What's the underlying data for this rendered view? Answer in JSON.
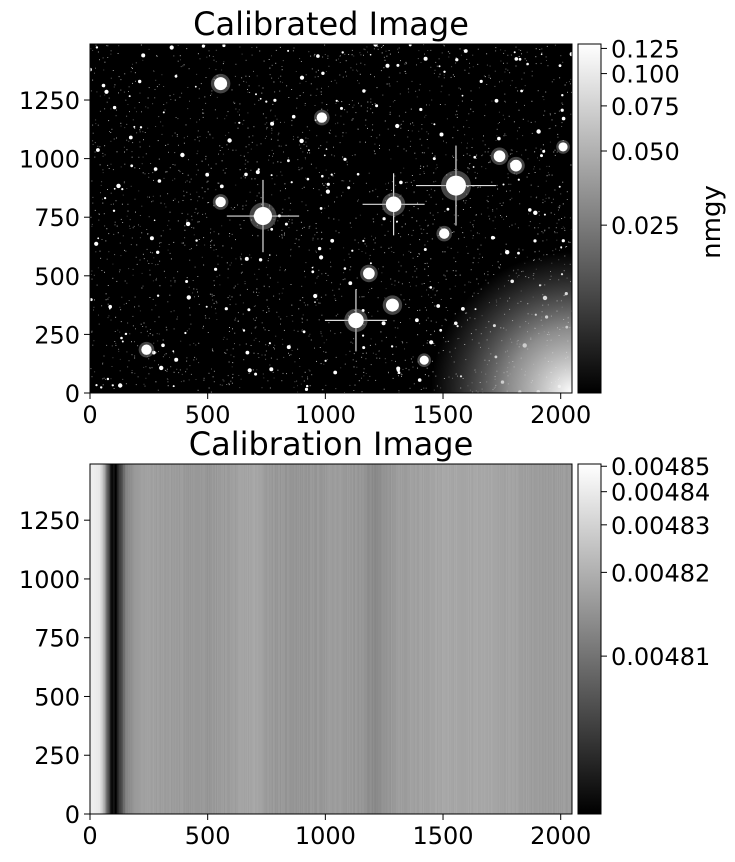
{
  "chart_data": [
    {
      "type": "heatmap",
      "title": "Calibrated Image",
      "xlabel": "",
      "ylabel": "",
      "xlim": [
        0,
        2048
      ],
      "ylim": [
        0,
        1489
      ],
      "x_ticks": [
        0,
        500,
        1000,
        1500,
        2000
      ],
      "y_ticks": [
        0,
        250,
        500,
        750,
        1000,
        1250
      ],
      "x_tick_labels": [
        "0",
        "500",
        "1000",
        "1500",
        "2000"
      ],
      "y_tick_labels": [
        "0",
        "250",
        "500",
        "750",
        "1000",
        "1250"
      ],
      "colormap": "gray",
      "background_level": 0.003,
      "stars": [
        {
          "x": 1555,
          "y": 885,
          "brightness": 0.125,
          "spikes": true
        },
        {
          "x": 735,
          "y": 755,
          "brightness": 0.11,
          "spikes": true
        },
        {
          "x": 1290,
          "y": 805,
          "brightness": 0.09,
          "spikes": true
        },
        {
          "x": 1130,
          "y": 310,
          "brightness": 0.09,
          "spikes": true
        },
        {
          "x": 555,
          "y": 1320,
          "brightness": 0.07,
          "spikes": false
        },
        {
          "x": 1285,
          "y": 375,
          "brightness": 0.07,
          "spikes": false
        },
        {
          "x": 1185,
          "y": 510,
          "brightness": 0.06,
          "spikes": false
        },
        {
          "x": 1740,
          "y": 1010,
          "brightness": 0.06,
          "spikes": false
        },
        {
          "x": 1810,
          "y": 970,
          "brightness": 0.06,
          "spikes": false
        },
        {
          "x": 240,
          "y": 185,
          "brightness": 0.05,
          "spikes": false
        },
        {
          "x": 985,
          "y": 1175,
          "brightness": 0.05,
          "spikes": false
        },
        {
          "x": 1505,
          "y": 680,
          "brightness": 0.05,
          "spikes": false
        },
        {
          "x": 555,
          "y": 815,
          "brightness": 0.05,
          "spikes": false
        },
        {
          "x": 1420,
          "y": 140,
          "brightness": 0.04,
          "spikes": false
        },
        {
          "x": 2010,
          "y": 1050,
          "brightness": 0.04,
          "spikes": false
        }
      ],
      "gradient_glow": {
        "x": 2048,
        "y": 0,
        "radius": 600,
        "level": 0.125
      },
      "colorbar": {
        "label": "nmgy",
        "scale": "asinh",
        "min": 0.0,
        "max": 0.13,
        "ticks": [
          0.025,
          0.05,
          0.075,
          0.1,
          0.125
        ],
        "tick_labels": [
          "0.025",
          "0.050",
          "0.075",
          "0.100",
          "0.125"
        ]
      }
    },
    {
      "type": "heatmap",
      "title": "Calibration Image",
      "xlabel": "",
      "ylabel": "",
      "xlim": [
        0,
        2048
      ],
      "ylim": [
        0,
        1489
      ],
      "x_ticks": [
        0,
        500,
        1000,
        1500,
        2000
      ],
      "y_ticks": [
        0,
        250,
        500,
        750,
        1000,
        1250
      ],
      "x_tick_labels": [
        "0",
        "500",
        "1000",
        "1500",
        "2000"
      ],
      "y_tick_labels": [
        "0",
        "250",
        "500",
        "750",
        "1000",
        "1250"
      ],
      "colormap": "gray",
      "column_profile": {
        "x": [
          0,
          40,
          70,
          90,
          110,
          130,
          160,
          220,
          350,
          500,
          650,
          700,
          750,
          820,
          950,
          1050,
          1150,
          1200,
          1250,
          1300,
          1400,
          1500,
          1600,
          1700,
          1800,
          1900,
          2000,
          2048
        ],
        "values": [
          0.004843,
          0.004838,
          0.00481,
          0.004803,
          0.004802,
          0.004806,
          0.004813,
          0.004817,
          0.004816,
          0.004815,
          0.004817,
          0.004818,
          0.004816,
          0.004815,
          0.004815,
          0.004816,
          0.004815,
          0.004813,
          0.004814,
          0.004816,
          0.004817,
          0.004818,
          0.004818,
          0.004818,
          0.004817,
          0.004816,
          0.004816,
          0.004816
        ]
      },
      "colorbar": {
        "label": "",
        "scale": "asinh",
        "min": 0.004802,
        "max": 0.004851,
        "ticks": [
          0.00481,
          0.00482,
          0.00483,
          0.00484,
          0.00485
        ],
        "tick_labels": [
          "0.00481",
          "0.00482",
          "0.00483",
          "0.00484",
          "0.00485"
        ]
      }
    }
  ]
}
